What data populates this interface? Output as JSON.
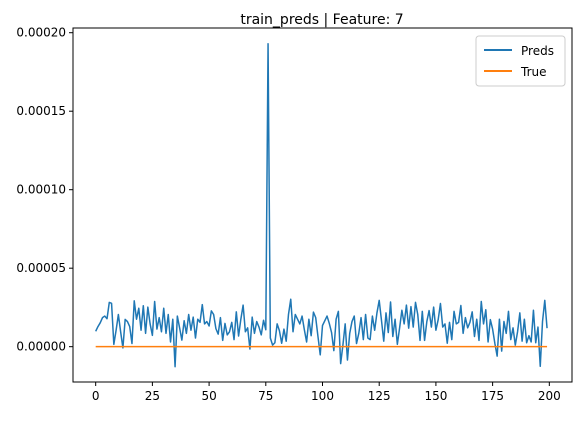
{
  "chart_data": {
    "type": "line",
    "title": "train_preds | Feature: 7",
    "xlabel": "",
    "ylabel": "",
    "xlim": [
      -10,
      210
    ],
    "ylim": [
      -2.25e-05,
      0.000203
    ],
    "x_ticks": [
      0,
      25,
      50,
      75,
      100,
      125,
      150,
      175,
      200
    ],
    "x_tick_labels": [
      "0",
      "25",
      "50",
      "75",
      "100",
      "125",
      "150",
      "175",
      "200"
    ],
    "y_ticks": [
      0,
      5e-05,
      0.0001,
      0.00015,
      0.0002
    ],
    "y_tick_labels": [
      "0.00000",
      "0.00005",
      "0.00010",
      "0.00015",
      "0.00020"
    ],
    "grid": false,
    "legend_position": "upper-right",
    "series": [
      {
        "name": "Preds",
        "color": "#1f77b4",
        "x_start": 0,
        "x_step": 1,
        "values": [
          9.8e-06,
          1.28e-05,
          1.52e-05,
          1.85e-05,
          1.95e-05,
          1.78e-05,
          2.82e-05,
          2.76e-05,
          1.5e-06,
          1.05e-05,
          2.05e-05,
          9.5e-06,
          -8e-07,
          1.74e-05,
          1.6e-05,
          1.28e-05,
          2e-06,
          2.92e-05,
          1.75e-05,
          2.45e-05,
          1.05e-05,
          2.61e-05,
          8.5e-06,
          2.52e-05,
          1.45e-05,
          7.2e-06,
          2.88e-05,
          1.12e-05,
          1.85e-05,
          9.5e-06,
          2.45e-05,
          8.5e-06,
          2.05e-05,
          3e-06,
          1.75e-05,
          -1.28e-05,
          1.95e-05,
          1.2e-05,
          4.2e-06,
          1.65e-05,
          8.5e-06,
          2.05e-05,
          1.05e-05,
          1.88e-05,
          5.5e-06,
          1.75e-05,
          1.55e-05,
          2.68e-05,
          1.45e-05,
          1.6e-05,
          1.32e-05,
          2.28e-05,
          2.05e-05,
          1.15e-05,
          8e-06,
          1.85e-05,
          4e-06,
          1.48e-05,
          7.5e-06,
          9.5e-06,
          1.55e-05,
          4.5e-06,
          2.22e-05,
          6.8e-06,
          1.75e-05,
          2.65e-05,
          9.5e-06,
          1.2e-05,
          -1.5e-06,
          1.88e-05,
          8.5e-06,
          1.6e-05,
          1.25e-05,
          7.5e-06,
          1.68e-05,
          1.08e-05,
          0.000193,
          5.5e-06,
          1e-06,
          2.5e-06,
          1.45e-05,
          1.02e-05,
          2.2e-06,
          1.12e-05,
          3.5e-06,
          2.05e-05,
          3.02e-05,
          9.5e-06,
          2.05e-05,
          1.75e-05,
          1.45e-05,
          1.95e-05,
          1.08e-05,
          3e-06,
          1.75e-05,
          7e-06,
          2.2e-05,
          1.85e-05,
          6.5e-06,
          -5.2e-06,
          1.35e-05,
          1.65e-05,
          1.95e-05,
          1.48e-05,
          9e-06,
          -2.5e-06,
          1.75e-05,
          2.25e-05,
          -1.08e-05,
          1e-06,
          1.45e-05,
          -8.5e-06,
          8.5e-06,
          1.6e-05,
          1.95e-05,
          2e-06,
          8.5e-06,
          1.85e-05,
          4.5e-06,
          2.05e-05,
          5.5e-06,
          4.5e-06,
          1.95e-05,
          1.05e-05,
          2.15e-05,
          2.95e-05,
          1.68e-05,
          3.5e-06,
          2.15e-05,
          9e-06,
          2.85e-05,
          6.5e-06,
          1.75e-05,
          1.5e-06,
          1.2e-05,
          2.32e-05,
          1.45e-05,
          2.65e-05,
          1.18e-05,
          2.55e-05,
          1.25e-05,
          2.82e-05,
          2.05e-05,
          4e-06,
          2.25e-05,
          4e-06,
          1.6e-05,
          2.3e-05,
          1.25e-05,
          2.52e-05,
          1.05e-05,
          1.72e-05,
          2.75e-05,
          1.25e-05,
          1.45e-05,
          2.2e-06,
          1.55e-05,
          4.5e-06,
          2.25e-05,
          1.45e-05,
          1.55e-05,
          2.62e-05,
          8.5e-06,
          1.85e-05,
          1.2e-05,
          1.55e-05,
          2.22e-05,
          6.5e-06,
          1.75e-05,
          4e-06,
          2.88e-05,
          1.45e-05,
          2.35e-05,
          3e-06,
          1.72e-05,
          1.12e-05,
          2e-06,
          -6e-06,
          1.75e-05,
          -2.8e-06,
          1.6e-05,
          8.5e-06,
          2.25e-05,
          4.5e-06,
          1.2e-05,
          1e-06,
          9.5e-06,
          2.15e-05,
          3.5e-06,
          1.75e-05,
          2.5e-06,
          7e-06,
          3e-06,
          2.32e-05,
          2.5e-06,
          1.25e-05,
          -1.25e-05,
          1.6e-05,
          2.95e-05,
          1.18e-05
        ]
      },
      {
        "name": "True",
        "color": "#ff7f0e",
        "x_start": 0,
        "x_step": 1,
        "constant_value": 0,
        "count": 200
      }
    ]
  }
}
